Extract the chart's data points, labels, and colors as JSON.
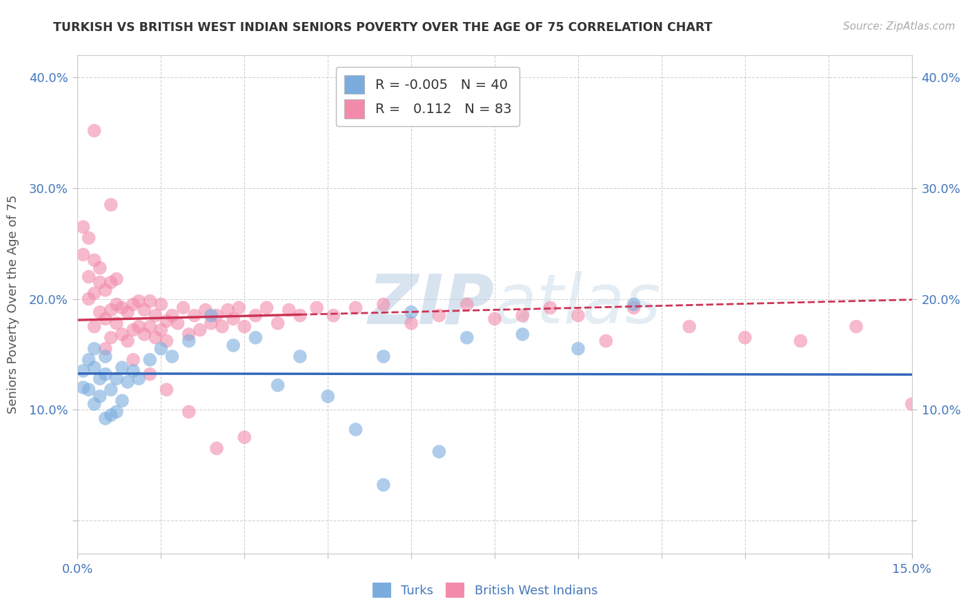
{
  "title": "TURKISH VS BRITISH WEST INDIAN SENIORS POVERTY OVER THE AGE OF 75 CORRELATION CHART",
  "source": "Source: ZipAtlas.com",
  "ylabel": "Seniors Poverty Over the Age of 75",
  "xlim": [
    0.0,
    0.15
  ],
  "ylim": [
    -0.03,
    0.42
  ],
  "plot_ylim": [
    -0.03,
    0.42
  ],
  "yticks": [
    0.0,
    0.1,
    0.2,
    0.3,
    0.4
  ],
  "xticks": [
    0.0,
    0.015,
    0.03,
    0.045,
    0.06,
    0.075,
    0.09,
    0.105,
    0.12,
    0.135,
    0.15
  ],
  "turks_R": -0.005,
  "turks_N": 40,
  "bwi_R": 0.112,
  "bwi_N": 83,
  "turks_color": "#7aadde",
  "bwi_color": "#f28baa",
  "turks_line_color": "#3366bb",
  "bwi_line_color": "#cc3355",
  "legend_R_color": "#cc3355",
  "legend_N_color": "#3366bb",
  "turks_x": [
    0.001,
    0.001,
    0.002,
    0.002,
    0.003,
    0.003,
    0.003,
    0.004,
    0.004,
    0.005,
    0.005,
    0.005,
    0.006,
    0.006,
    0.007,
    0.007,
    0.008,
    0.008,
    0.009,
    0.01,
    0.011,
    0.013,
    0.015,
    0.017,
    0.02,
    0.024,
    0.028,
    0.032,
    0.036,
    0.04,
    0.045,
    0.05,
    0.055,
    0.06,
    0.065,
    0.07,
    0.08,
    0.09,
    0.1,
    0.055
  ],
  "turks_y": [
    0.135,
    0.12,
    0.145,
    0.118,
    0.155,
    0.105,
    0.138,
    0.112,
    0.128,
    0.148,
    0.132,
    0.092,
    0.118,
    0.095,
    0.128,
    0.098,
    0.138,
    0.108,
    0.125,
    0.135,
    0.128,
    0.145,
    0.155,
    0.148,
    0.162,
    0.185,
    0.158,
    0.165,
    0.122,
    0.148,
    0.112,
    0.082,
    0.148,
    0.188,
    0.062,
    0.165,
    0.168,
    0.155,
    0.195,
    0.032
  ],
  "bwi_x": [
    0.001,
    0.001,
    0.002,
    0.002,
    0.002,
    0.003,
    0.003,
    0.003,
    0.004,
    0.004,
    0.004,
    0.005,
    0.005,
    0.005,
    0.006,
    0.006,
    0.006,
    0.007,
    0.007,
    0.007,
    0.008,
    0.008,
    0.009,
    0.009,
    0.01,
    0.01,
    0.011,
    0.011,
    0.012,
    0.012,
    0.013,
    0.013,
    0.014,
    0.014,
    0.015,
    0.015,
    0.016,
    0.016,
    0.017,
    0.018,
    0.019,
    0.02,
    0.021,
    0.022,
    0.023,
    0.024,
    0.025,
    0.026,
    0.027,
    0.028,
    0.029,
    0.03,
    0.032,
    0.034,
    0.036,
    0.038,
    0.04,
    0.043,
    0.046,
    0.05,
    0.055,
    0.06,
    0.065,
    0.07,
    0.075,
    0.08,
    0.085,
    0.09,
    0.095,
    0.1,
    0.11,
    0.12,
    0.13,
    0.14,
    0.15,
    0.003,
    0.006,
    0.01,
    0.013,
    0.016,
    0.02,
    0.025,
    0.03
  ],
  "bwi_y": [
    0.24,
    0.265,
    0.2,
    0.22,
    0.255,
    0.175,
    0.205,
    0.235,
    0.188,
    0.215,
    0.228,
    0.155,
    0.182,
    0.208,
    0.165,
    0.19,
    0.215,
    0.178,
    0.195,
    0.218,
    0.168,
    0.192,
    0.162,
    0.188,
    0.172,
    0.195,
    0.175,
    0.198,
    0.168,
    0.19,
    0.175,
    0.198,
    0.165,
    0.185,
    0.172,
    0.195,
    0.18,
    0.162,
    0.185,
    0.178,
    0.192,
    0.168,
    0.185,
    0.172,
    0.19,
    0.178,
    0.185,
    0.175,
    0.19,
    0.182,
    0.192,
    0.175,
    0.185,
    0.192,
    0.178,
    0.19,
    0.185,
    0.192,
    0.185,
    0.192,
    0.195,
    0.178,
    0.185,
    0.195,
    0.182,
    0.185,
    0.192,
    0.185,
    0.162,
    0.192,
    0.175,
    0.165,
    0.162,
    0.175,
    0.105,
    0.352,
    0.285,
    0.145,
    0.132,
    0.118,
    0.098,
    0.065,
    0.075
  ]
}
